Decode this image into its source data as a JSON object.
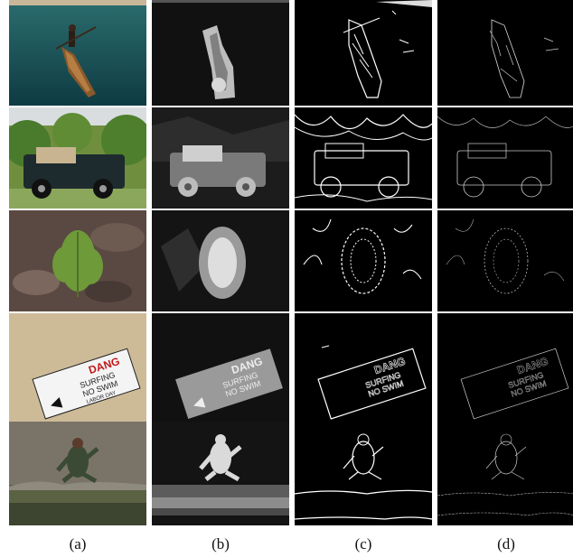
{
  "figure": {
    "columns": [
      {
        "id": "a",
        "label": "(a)",
        "kind": "original-photo"
      },
      {
        "id": "b",
        "label": "(b)",
        "kind": "grayscale-map"
      },
      {
        "id": "c",
        "label": "(c)",
        "kind": "edge-map"
      },
      {
        "id": "d",
        "label": "(d)",
        "kind": "edge-map-thin"
      }
    ],
    "rows": [
      {
        "id": "boat",
        "subject": "man-in-canoe"
      },
      {
        "id": "jeep",
        "subject": "jeep-in-grass"
      },
      {
        "id": "plant",
        "subject": "fern-plant"
      },
      {
        "id": "sign",
        "subject": "sign-in-sand",
        "sign_text": [
          "DANG",
          "SURFING",
          "NO SWIM",
          "LABOR DAY"
        ]
      },
      {
        "id": "jumper",
        "subject": "person-jumping"
      }
    ],
    "colors": {
      "background": "#ffffff",
      "map_bg": "#000000",
      "edge": "#ffffff"
    }
  }
}
